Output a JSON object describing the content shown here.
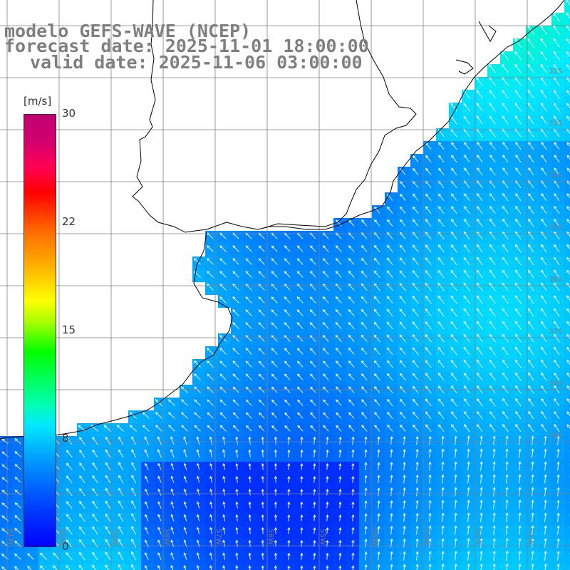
{
  "title": {
    "line1": "modelo GEFS-WAVE (NCEP)",
    "line2": "forecast date: 2025-11-01 18:00:00",
    "line3": "valid date: 2025-11-06 03:00:00"
  },
  "colorbar": {
    "unit": "[m/s]",
    "ticks": [
      "30",
      "22",
      "15",
      "8",
      "0"
    ],
    "min": 0,
    "max": 30
  },
  "grid": {
    "lat_labels": [
      "32S",
      "33S",
      "34S",
      "35S",
      "36S",
      "37S",
      "38S",
      "39S"
    ],
    "lon_labels": [
      "61W",
      "60W",
      "59W",
      "58W",
      "57W",
      "56W",
      "55W",
      "54W",
      "53W",
      "52W",
      "51W"
    ]
  },
  "colors": {
    "title": "#7f7f7f",
    "land": "#ffffff",
    "coastline": "#000000",
    "gridline": "#808080",
    "arrow": "#ffffff"
  },
  "field": {
    "variable": "wind speed and direction",
    "typical_range_m_s": [
      3,
      9
    ],
    "dominant_direction": "from southeast/south"
  }
}
